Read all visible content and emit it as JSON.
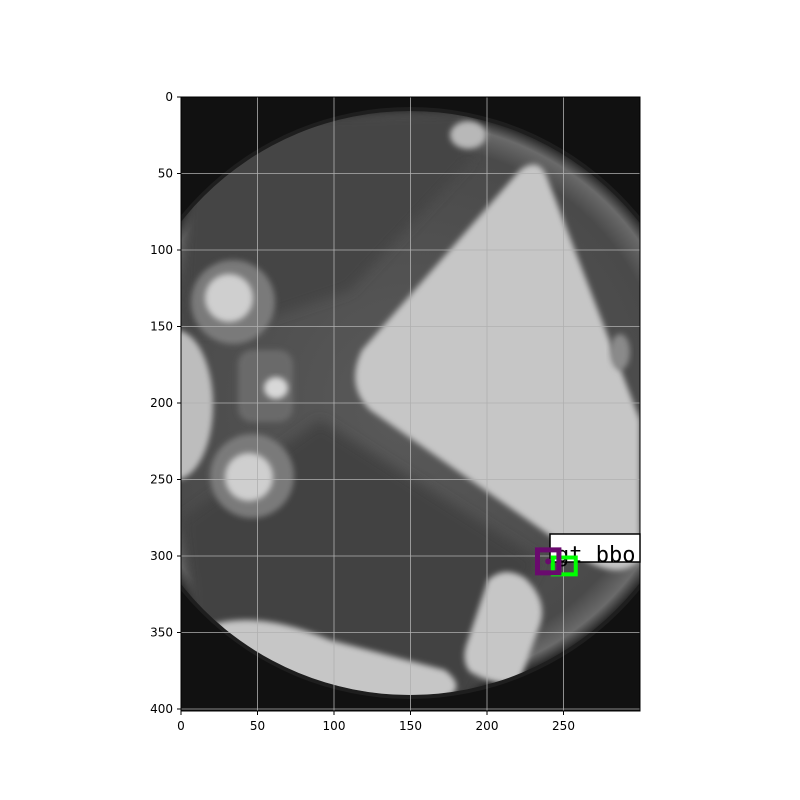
{
  "image_panel": {
    "x_ticks": [
      "0",
      "50",
      "100",
      "150",
      "200",
      "250"
    ],
    "y_ticks": [
      "0",
      "50",
      "100",
      "150",
      "200",
      "250",
      "300",
      "350",
      "400"
    ],
    "grid": true,
    "image_subject": "grayscale x-ray of a wheel rim",
    "image_extent": {
      "x": [
        0,
        300
      ],
      "y": [
        0,
        402
      ]
    }
  },
  "annotations": {
    "gt_box": {
      "label": "gt bbo",
      "color": "#00ff00",
      "x": [
        243,
        258
      ],
      "y": [
        301,
        312
      ]
    },
    "pred_box": {
      "color": "#6a0a6e",
      "x": [
        233,
        247
      ],
      "y": [
        296,
        311
      ]
    },
    "label_box_color": "#ffffff"
  }
}
